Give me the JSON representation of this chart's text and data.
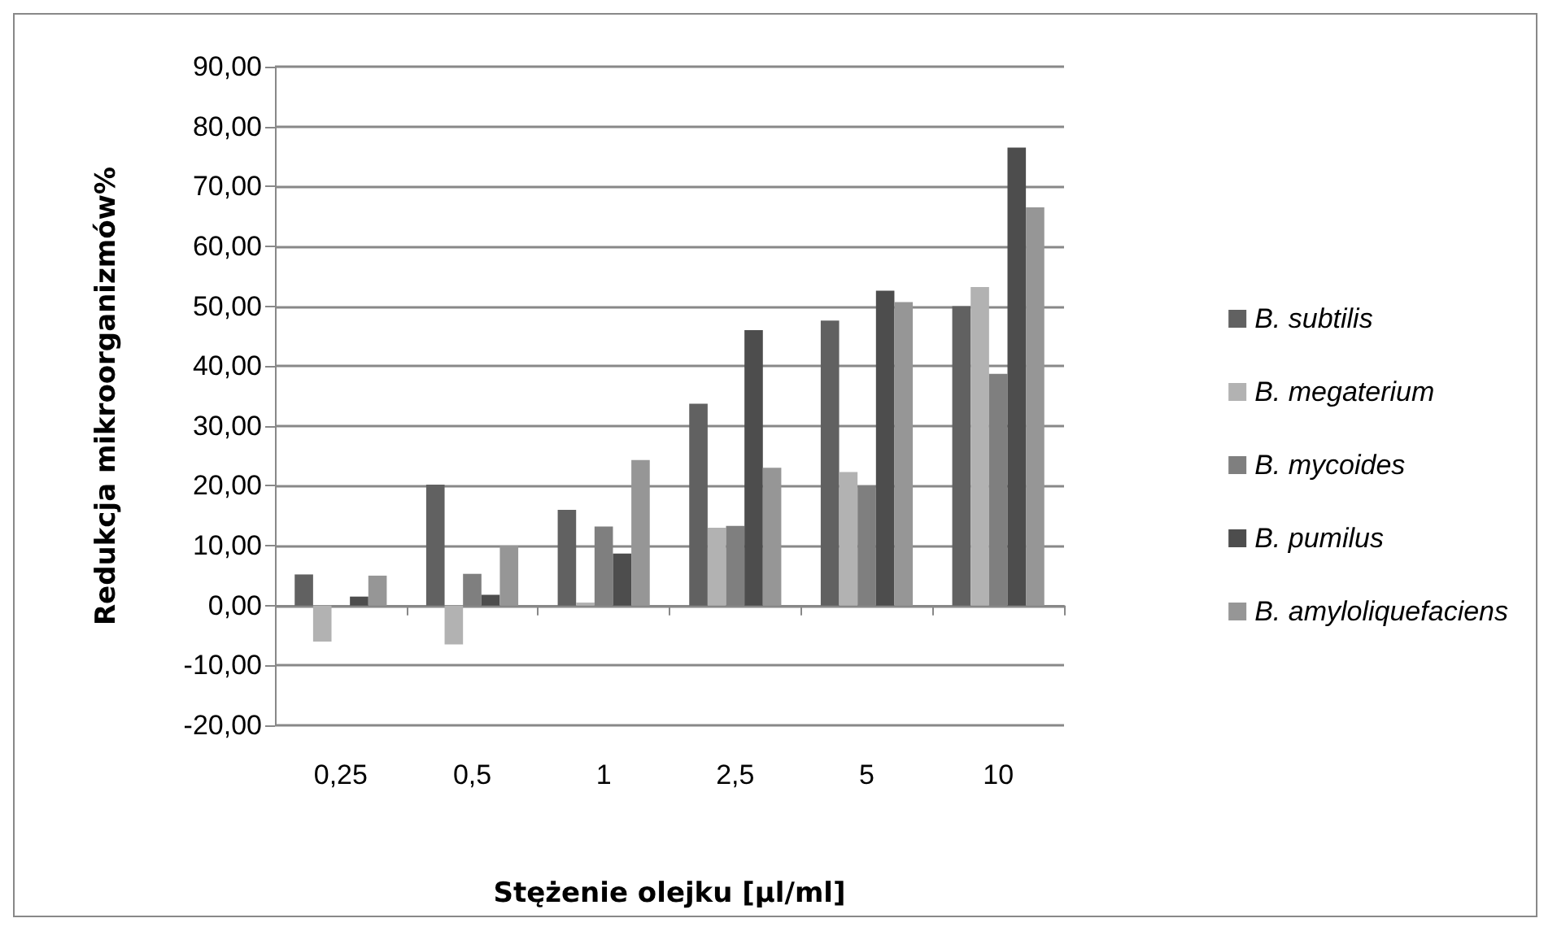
{
  "chart_data": {
    "type": "bar",
    "xlabel": "Stężenie olejku [µl/ml]",
    "ylabel": "Redukcja mikroorganizmów%",
    "categories": [
      "0,25",
      "0,5",
      "1",
      "2,5",
      "5",
      "10"
    ],
    "series": [
      {
        "name": "B. subtilis",
        "color": "#616161",
        "values": [
          5.2,
          20.2,
          16,
          33.7,
          47.6,
          50
        ]
      },
      {
        "name": "B. megaterium",
        "color": "#b2b2b2",
        "values": [
          -6,
          -6.5,
          0.5,
          13,
          22.3,
          53.2
        ]
      },
      {
        "name": "B. mycoides",
        "color": "#7f7f7f",
        "values": [
          0,
          5.3,
          13.2,
          13.3,
          20,
          38.7
        ]
      },
      {
        "name": "B. pumilus",
        "color": "#4d4d4d",
        "values": [
          1.5,
          1.8,
          8.7,
          46,
          52.6,
          76.5
        ]
      },
      {
        "name": "B. amyloliquefaciens",
        "color": "#969696",
        "values": [
          5,
          10,
          24.3,
          23,
          50.7,
          66.5
        ]
      }
    ],
    "ylim": [
      -20,
      90
    ],
    "yticks": [
      {
        "value": -20,
        "label": "-20,00"
      },
      {
        "value": -10,
        "label": "-10,00"
      },
      {
        "value": 0,
        "label": "0,00"
      },
      {
        "value": 10,
        "label": "10,00"
      },
      {
        "value": 20,
        "label": "20,00"
      },
      {
        "value": 30,
        "label": "30,00"
      },
      {
        "value": 40,
        "label": "40,00"
      },
      {
        "value": 50,
        "label": "50,00"
      },
      {
        "value": 60,
        "label": "60,00"
      },
      {
        "value": 70,
        "label": "70,00"
      },
      {
        "value": 80,
        "label": "80,00"
      },
      {
        "value": 90,
        "label": "90,00"
      }
    ],
    "grid": "y",
    "legend": "right"
  }
}
